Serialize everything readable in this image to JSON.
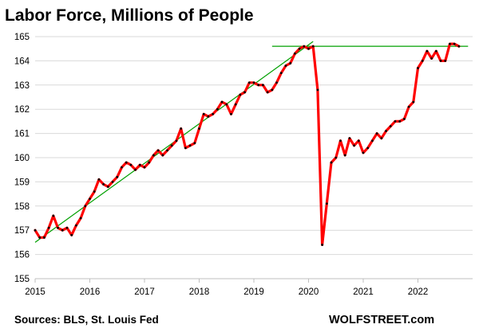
{
  "chart_data": {
    "type": "line",
    "title": "Labor Force, Millions of People",
    "xlabel": "",
    "ylabel": "",
    "xlim": [
      2015,
      2023
    ],
    "ylim": [
      155,
      165
    ],
    "yticks": [
      155,
      156,
      157,
      158,
      159,
      160,
      161,
      162,
      163,
      164,
      165
    ],
    "xticks": [
      2015,
      2016,
      2017,
      2018,
      2019,
      2020,
      2021,
      2022
    ],
    "grid": "horizontal",
    "legend": "none",
    "source": "Sources: BLS, St. Louis Fed",
    "brand": "WOLFSTREET.com",
    "colors": {
      "series": "#ff0000",
      "markers": "#000000",
      "trend": "#00a000",
      "grid": "#d9d9d9"
    },
    "series": [
      {
        "x": [
          "2015-01",
          "2015-02",
          "2015-03",
          "2015-04",
          "2015-05",
          "2015-06",
          "2015-07",
          "2015-08",
          "2015-09",
          "2015-10",
          "2015-11",
          "2015-12",
          "2016-01",
          "2016-02",
          "2016-03",
          "2016-04",
          "2016-05",
          "2016-06",
          "2016-07",
          "2016-08",
          "2016-09",
          "2016-10",
          "2016-11",
          "2016-12",
          "2017-01",
          "2017-02",
          "2017-03",
          "2017-04",
          "2017-05",
          "2017-06",
          "2017-07",
          "2017-08",
          "2017-09",
          "2017-10",
          "2017-11",
          "2017-12",
          "2018-01",
          "2018-02",
          "2018-03",
          "2018-04",
          "2018-05",
          "2018-06",
          "2018-07",
          "2018-08",
          "2018-09",
          "2018-10",
          "2018-11",
          "2018-12",
          "2019-01",
          "2019-02",
          "2019-03",
          "2019-04",
          "2019-05",
          "2019-06",
          "2019-07",
          "2019-08",
          "2019-09",
          "2019-10",
          "2019-11",
          "2019-12",
          "2020-01",
          "2020-02",
          "2020-03",
          "2020-04",
          "2020-05",
          "2020-06",
          "2020-07",
          "2020-08",
          "2020-09",
          "2020-10",
          "2020-11",
          "2020-12",
          "2021-01",
          "2021-02",
          "2021-03",
          "2021-04",
          "2021-05",
          "2021-06",
          "2021-07",
          "2021-08",
          "2021-09",
          "2021-10",
          "2021-11",
          "2021-12",
          "2022-01",
          "2022-02",
          "2022-03",
          "2022-04",
          "2022-05",
          "2022-06",
          "2022-07",
          "2022-08",
          "2022-09",
          "2022-10"
        ],
        "values": [
          157.0,
          156.7,
          156.7,
          157.1,
          157.6,
          157.1,
          157.0,
          157.1,
          156.8,
          157.2,
          157.5,
          158.0,
          158.3,
          158.6,
          159.1,
          158.9,
          158.8,
          159.0,
          159.2,
          159.6,
          159.8,
          159.7,
          159.5,
          159.7,
          159.6,
          159.8,
          160.1,
          160.3,
          160.1,
          160.3,
          160.5,
          160.7,
          161.2,
          160.4,
          160.5,
          160.6,
          161.2,
          161.8,
          161.7,
          161.8,
          162.0,
          162.3,
          162.2,
          161.8,
          162.2,
          162.6,
          162.7,
          163.1,
          163.1,
          163.0,
          163.0,
          162.7,
          162.8,
          163.1,
          163.5,
          163.8,
          163.9,
          164.3,
          164.5,
          164.6,
          164.5,
          164.6,
          162.8,
          156.4,
          158.1,
          159.8,
          160.0,
          160.7,
          160.1,
          160.8,
          160.5,
          160.7,
          160.2,
          160.4,
          160.7,
          161.0,
          160.8,
          161.1,
          161.3,
          161.5,
          161.5,
          161.6,
          162.1,
          162.3,
          163.7,
          164.0,
          164.4,
          164.1,
          164.4,
          164.0,
          164.0,
          164.7,
          164.7,
          164.6
        ]
      }
    ],
    "trendlines": [
      {
        "from": [
          "2015-01",
          156.5
        ],
        "to": [
          "2020-02",
          164.8
        ]
      },
      {
        "from": [
          "2019-05",
          164.6
        ],
        "to": [
          "2022-12",
          164.6
        ]
      }
    ]
  }
}
